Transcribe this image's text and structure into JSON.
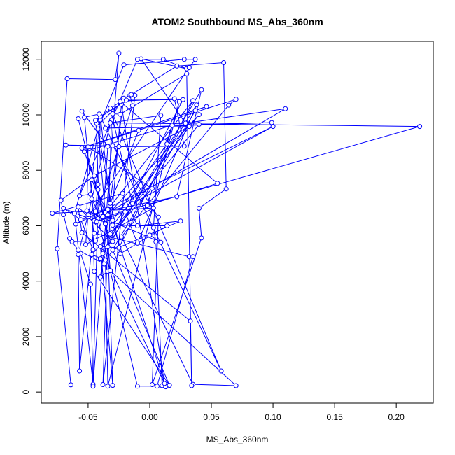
{
  "chart_data": {
    "type": "line",
    "title": "ATOM2 Southbound MS_Abs_360nm",
    "xlabel": "MS_Abs_360nm",
    "ylabel": "Altitude (m)",
    "xlim": [
      -0.088,
      0.23
    ],
    "ylim": [
      -400,
      12650
    ],
    "x_ticks": [
      -0.05,
      0.0,
      0.05,
      0.1,
      0.15,
      0.2
    ],
    "x_tick_labels": [
      "-0.05",
      "0.00",
      "0.05",
      "0.10",
      "0.15",
      "0.20"
    ],
    "y_ticks": [
      0,
      2000,
      4000,
      6000,
      8000,
      10000,
      12000
    ],
    "y_tick_labels": [
      "0",
      "2000",
      "4000",
      "6000",
      "8000",
      "10000",
      "12000"
    ],
    "grid": false,
    "legend": "none",
    "series_color": "#0000ff",
    "marker": "open-circle",
    "series": [
      {
        "points": [
          [
            -0.064,
            260
          ],
          [
            -0.075,
            5170
          ],
          [
            -0.067,
            11300
          ],
          [
            -0.028,
            11270
          ],
          [
            -0.025,
            12220
          ],
          [
            -0.046,
            280
          ],
          [
            -0.061,
            6440
          ],
          [
            -0.04,
            9820
          ],
          [
            -0.031,
            9810
          ],
          [
            -0.038,
            270
          ],
          [
            -0.012,
            10700
          ],
          [
            -0.016,
            10700
          ],
          [
            -0.014,
            10330
          ],
          [
            -0.045,
            6160
          ],
          [
            -0.053,
            9900
          ],
          [
            -0.055,
            10130
          ],
          [
            -0.034,
            8860
          ],
          [
            -0.038,
            6330
          ],
          [
            -0.044,
            5450
          ],
          [
            -0.063,
            5420
          ],
          [
            -0.056,
            5000
          ],
          [
            -0.048,
            3890
          ],
          [
            -0.046,
            210
          ],
          [
            -0.04,
            9950
          ],
          [
            -0.032,
            6720
          ],
          [
            -0.034,
            4350
          ],
          [
            -0.04,
            4150
          ],
          [
            -0.021,
            10600
          ],
          [
            -0.015,
            10730
          ],
          [
            0.022,
            11760
          ],
          [
            0.06,
            11880
          ],
          [
            0.062,
            7330
          ],
          [
            0.04,
            6630
          ],
          [
            0.042,
            5560
          ],
          [
            0.002,
            270
          ],
          [
            0.007,
            6310
          ],
          [
            -0.03,
            8880
          ],
          [
            -0.068,
            8910
          ],
          [
            -0.025,
            8850
          ],
          [
            0.028,
            8870
          ],
          [
            0.02,
            10580
          ],
          [
            -0.022,
            10500
          ],
          [
            -0.042,
            9620
          ],
          [
            -0.048,
            7140
          ],
          [
            -0.057,
            7080
          ],
          [
            -0.01,
            12000
          ],
          [
            0.011,
            12000
          ],
          [
            0.03,
            11660
          ],
          [
            -0.007,
            12020
          ],
          [
            0.029,
            9700
          ],
          [
            0.11,
            10220
          ],
          [
            -0.045,
            6180
          ],
          [
            -0.07,
            6630
          ],
          [
            -0.056,
            6220
          ],
          [
            -0.046,
            5130
          ],
          [
            -0.045,
            5730
          ],
          [
            0.032,
            4880
          ],
          [
            0.035,
            4880
          ],
          [
            0.006,
            210
          ],
          [
            -0.01,
            210
          ],
          [
            -0.042,
            6250
          ],
          [
            0.219,
            9580
          ],
          [
            -0.032,
            9710
          ],
          [
            0.009,
            9980
          ],
          [
            0.003,
            5930
          ],
          [
            0.005,
            5420
          ],
          [
            0.01,
            230
          ],
          [
            0.013,
            190
          ],
          [
            -0.034,
            6590
          ],
          [
            -0.009,
            9440
          ],
          [
            -0.032,
            6810
          ],
          [
            -0.043,
            6150
          ],
          [
            -0.02,
            6500
          ],
          [
            -0.01,
            5370
          ],
          [
            0.038,
            10360
          ],
          [
            -0.038,
            5000
          ],
          [
            0.012,
            310
          ],
          [
            -0.023,
            10380
          ],
          [
            -0.032,
            5700
          ],
          [
            0.04,
            9660
          ],
          [
            0.099,
            9720
          ],
          [
            -0.036,
            9520
          ],
          [
            0.032,
            9580
          ],
          [
            -0.045,
            7800
          ],
          [
            -0.072,
            6920
          ],
          [
            -0.07,
            6400
          ],
          [
            -0.065,
            5540
          ],
          [
            -0.058,
            5120
          ],
          [
            -0.037,
            4620
          ],
          [
            0.037,
            10150
          ],
          [
            0.046,
            10300
          ],
          [
            -0.055,
            8800
          ],
          [
            0.07,
            10560
          ],
          [
            0.064,
            10350
          ],
          [
            -0.023,
            5600
          ],
          [
            0.035,
            280
          ],
          [
            0.07,
            230
          ],
          [
            -0.032,
            4380
          ],
          [
            -0.042,
            9490
          ],
          [
            -0.021,
            11800
          ],
          [
            0.028,
            12000
          ],
          [
            0.037,
            12000
          ],
          [
            0.032,
            11700
          ],
          [
            -0.05,
            6320
          ],
          [
            -0.03,
            6060
          ],
          [
            -0.047,
            7660
          ],
          [
            -0.036,
            6470
          ],
          [
            0.035,
            10510
          ],
          [
            -0.025,
            5200
          ],
          [
            -0.04,
            5250
          ],
          [
            -0.03,
            240
          ],
          [
            -0.034,
            5240
          ],
          [
            0.042,
            10900
          ],
          [
            0.022,
            7050
          ],
          [
            -0.05,
            6400
          ],
          [
            -0.052,
            5320
          ],
          [
            0.003,
            6640
          ],
          [
            -0.079,
            6450
          ],
          [
            -0.022,
            7170
          ],
          [
            -0.01,
            6000
          ],
          [
            0.025,
            6170
          ],
          [
            -0.03,
            5120
          ],
          [
            0.016,
            240
          ],
          [
            -0.045,
            4350
          ],
          [
            -0.047,
            6960
          ],
          [
            -0.03,
            5430
          ],
          [
            -0.058,
            6680
          ],
          [
            -0.055,
            5750
          ],
          [
            0.033,
            2560
          ],
          [
            0.034,
            230
          ],
          [
            0.03,
            11480
          ],
          [
            -0.024,
            10020
          ],
          [
            -0.03,
            10040
          ],
          [
            -0.058,
            4960
          ],
          [
            -0.057,
            760
          ],
          [
            -0.042,
            7490
          ],
          [
            -0.043,
            9700
          ],
          [
            -0.024,
            4990
          ],
          [
            0.014,
            6000
          ],
          [
            -0.03,
            6020
          ],
          [
            0.04,
            10010
          ],
          [
            -0.034,
            6400
          ],
          [
            -0.04,
            4810
          ],
          [
            0.027,
            10550
          ],
          [
            -0.019,
            10530
          ],
          [
            -0.044,
            9800
          ],
          [
            -0.024,
            10480
          ],
          [
            0.055,
            7530
          ],
          [
            -0.002,
            6730
          ],
          [
            0.018,
            9620
          ],
          [
            -0.053,
            8670
          ],
          [
            -0.042,
            7300
          ],
          [
            -0.036,
            6070
          ],
          [
            -0.058,
            9860
          ],
          [
            -0.041,
            10030
          ],
          [
            0.058,
            760
          ],
          [
            -0.032,
            10240
          ],
          [
            -0.014,
            6800
          ],
          [
            0.1,
            9580
          ],
          [
            -0.06,
            6060
          ],
          [
            -0.044,
            6520
          ],
          [
            -0.03,
            6190
          ],
          [
            0.014,
            8950
          ],
          [
            0.024,
            10470
          ],
          [
            -0.034,
            210
          ],
          [
            -0.036,
            4760
          ],
          [
            -0.047,
            4960
          ],
          [
            0.002,
            7350
          ],
          [
            -0.05,
            8840
          ],
          [
            -0.051,
            6540
          ],
          [
            0.009,
            5400
          ],
          [
            0.0,
            5660
          ]
        ]
      }
    ]
  }
}
